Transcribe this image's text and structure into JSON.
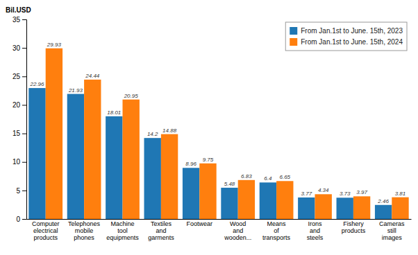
{
  "chart_data": {
    "type": "bar",
    "ylabel": "Bil.USD",
    "categories": [
      "Computer\nelectrical\nproducts",
      "Telephones\nmobile\nphones",
      "Machine\ntool\nequipments",
      "Textiles\nand\ngarments",
      "Footwear",
      "Wood\nand\nwooden...",
      "Means\nof\ntransports",
      "Irons\nand\nsteels",
      "Fishery\nproducts",
      "Cameras\nstill\nimages"
    ],
    "series": [
      {
        "name": "From Jan.1st to June. 15th, 2023",
        "values": [
          22.96,
          21.93,
          18.01,
          14.2,
          8.96,
          5.48,
          6.4,
          3.77,
          3.73,
          2.46
        ]
      },
      {
        "name": "From Jan.1st to June. 15th, 2024",
        "values": [
          29.93,
          24.44,
          20.95,
          14.88,
          9.75,
          6.83,
          6.65,
          4.34,
          3.97,
          3.81
        ]
      }
    ],
    "ylim": [
      0,
      35
    ],
    "yticks": [
      0,
      5,
      10,
      15,
      20,
      25,
      30,
      35
    ],
    "data_labels": true,
    "grid": false,
    "legend": "upper right"
  }
}
